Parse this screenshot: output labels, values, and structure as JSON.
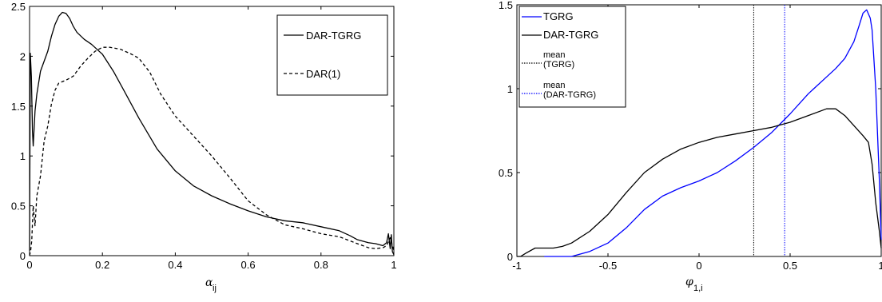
{
  "chart_data": [
    {
      "type": "line",
      "xlabel": "α",
      "xlabel_sub": "ij",
      "ylabel": "",
      "xlim": [
        0,
        1
      ],
      "ylim": [
        0,
        2.5
      ],
      "xticks": [
        "0",
        "0.2",
        "0.4",
        "0.6",
        "0.8",
        "1"
      ],
      "xtick_values": [
        0,
        0.2,
        0.4,
        0.6,
        0.8,
        1
      ],
      "yticks": [
        "0",
        "0.5",
        "1",
        "1.5",
        "2",
        "2.5"
      ],
      "ytick_values": [
        0,
        0.5,
        1,
        1.5,
        2,
        2.5
      ],
      "legend_placement": "top-right",
      "series": [
        {
          "name": "DAR-TGRG",
          "style": "solid",
          "color": "#000000",
          "x": [
            0,
            0.002,
            0.005,
            0.008,
            0.01,
            0.015,
            0.02,
            0.03,
            0.04,
            0.05,
            0.06,
            0.07,
            0.08,
            0.09,
            0.1,
            0.11,
            0.12,
            0.13,
            0.15,
            0.17,
            0.2,
            0.23,
            0.26,
            0.3,
            0.35,
            0.4,
            0.45,
            0.5,
            0.55,
            0.6,
            0.65,
            0.7,
            0.75,
            0.8,
            0.85,
            0.88,
            0.9,
            0.93,
            0.95,
            0.97,
            0.98,
            0.985,
            0.99,
            0.993,
            0.996,
            1.0
          ],
          "y": [
            0.05,
            2.03,
            1.8,
            1.25,
            1.1,
            1.45,
            1.62,
            1.85,
            1.95,
            2.05,
            2.2,
            2.32,
            2.4,
            2.44,
            2.43,
            2.38,
            2.3,
            2.24,
            2.17,
            2.12,
            2.02,
            1.85,
            1.65,
            1.38,
            1.07,
            0.85,
            0.7,
            0.6,
            0.52,
            0.45,
            0.39,
            0.35,
            0.33,
            0.29,
            0.25,
            0.2,
            0.16,
            0.13,
            0.12,
            0.1,
            0.13,
            0.22,
            0.07,
            0.21,
            0.04,
            0.01
          ]
        },
        {
          "name": "DAR(1)",
          "style": "dashed",
          "color": "#000000",
          "x": [
            0,
            0.003,
            0.006,
            0.01,
            0.015,
            0.02,
            0.03,
            0.04,
            0.05,
            0.06,
            0.07,
            0.08,
            0.1,
            0.12,
            0.14,
            0.16,
            0.18,
            0.2,
            0.22,
            0.25,
            0.28,
            0.3,
            0.33,
            0.36,
            0.4,
            0.45,
            0.5,
            0.55,
            0.6,
            0.65,
            0.7,
            0.75,
            0.8,
            0.85,
            0.9,
            0.93,
            0.95,
            0.97,
            0.98,
            0.99,
            1.0
          ],
          "y": [
            0.0,
            0.05,
            0.15,
            0.5,
            0.3,
            0.6,
            0.8,
            1.15,
            1.3,
            1.52,
            1.66,
            1.73,
            1.76,
            1.8,
            1.9,
            1.98,
            2.05,
            2.09,
            2.09,
            2.07,
            2.02,
            1.98,
            1.84,
            1.62,
            1.4,
            1.2,
            1.0,
            0.78,
            0.55,
            0.41,
            0.31,
            0.27,
            0.22,
            0.19,
            0.12,
            0.08,
            0.07,
            0.08,
            0.1,
            0.18,
            0.05
          ]
        }
      ]
    },
    {
      "type": "line",
      "xlabel": "φ",
      "xlabel_sub": "1,i",
      "ylabel": "",
      "xlim": [
        -1,
        1
      ],
      "ylim": [
        0,
        1.5
      ],
      "xticks": [
        "-1",
        "-0.5",
        "0",
        "0.5",
        "1"
      ],
      "xtick_values": [
        -1,
        -0.5,
        0,
        0.5,
        1
      ],
      "yticks": [
        "0",
        "0.5",
        "1",
        "1.5"
      ],
      "ytick_values": [
        0,
        0.5,
        1,
        1.5
      ],
      "legend_placement": "top-left",
      "series": [
        {
          "name": "TGRG",
          "style": "solid",
          "color": "#0000ff",
          "x": [
            -0.85,
            -0.7,
            -0.6,
            -0.5,
            -0.4,
            -0.3,
            -0.2,
            -0.1,
            0.0,
            0.1,
            0.2,
            0.3,
            0.4,
            0.5,
            0.6,
            0.7,
            0.75,
            0.8,
            0.85,
            0.88,
            0.9,
            0.92,
            0.94,
            0.95,
            0.97,
            0.99,
            1.0
          ],
          "y": [
            0.0,
            0.0,
            0.03,
            0.08,
            0.17,
            0.28,
            0.36,
            0.41,
            0.45,
            0.5,
            0.57,
            0.65,
            0.74,
            0.85,
            0.97,
            1.07,
            1.12,
            1.18,
            1.28,
            1.38,
            1.45,
            1.47,
            1.42,
            1.35,
            1.0,
            0.45,
            0.1
          ]
        },
        {
          "name": "DAR-TGRG",
          "style": "solid",
          "color": "#000000",
          "x": [
            -1.0,
            -0.98,
            -0.95,
            -0.9,
            -0.85,
            -0.8,
            -0.75,
            -0.7,
            -0.6,
            -0.5,
            -0.4,
            -0.3,
            -0.2,
            -0.1,
            0.0,
            0.1,
            0.2,
            0.3,
            0.4,
            0.5,
            0.6,
            0.7,
            0.75,
            0.8,
            0.85,
            0.9,
            0.93,
            0.95,
            0.97,
            0.99,
            1.0
          ],
          "y": [
            0.0,
            0.0,
            0.02,
            0.05,
            0.05,
            0.05,
            0.06,
            0.08,
            0.15,
            0.25,
            0.38,
            0.5,
            0.58,
            0.64,
            0.68,
            0.71,
            0.73,
            0.75,
            0.77,
            0.8,
            0.84,
            0.88,
            0.88,
            0.84,
            0.78,
            0.72,
            0.68,
            0.55,
            0.32,
            0.15,
            0.05
          ]
        }
      ],
      "vlines": [
        {
          "name": "mean (TGRG)",
          "x": 0.3,
          "color": "#000000"
        },
        {
          "name": "mean (DAR-TGRG)",
          "x": 0.47,
          "color": "#0000ff"
        }
      ],
      "legend_entries": [
        {
          "lines": [
            "TGRG"
          ],
          "color": "#0000ff",
          "style": "solid"
        },
        {
          "lines": [
            "DAR-TGRG"
          ],
          "color": "#000000",
          "style": "solid"
        },
        {
          "lines": [
            "mean",
            "(TGRG)"
          ],
          "color": "#000000",
          "style": "dotted"
        },
        {
          "lines": [
            "mean",
            "(DAR-TGRG)"
          ],
          "color": "#0000ff",
          "style": "dotted"
        }
      ]
    }
  ],
  "legend1": [
    {
      "label": "DAR-TGRG",
      "style": "solid"
    },
    {
      "label": "DAR(1)",
      "style": "dashed"
    }
  ]
}
